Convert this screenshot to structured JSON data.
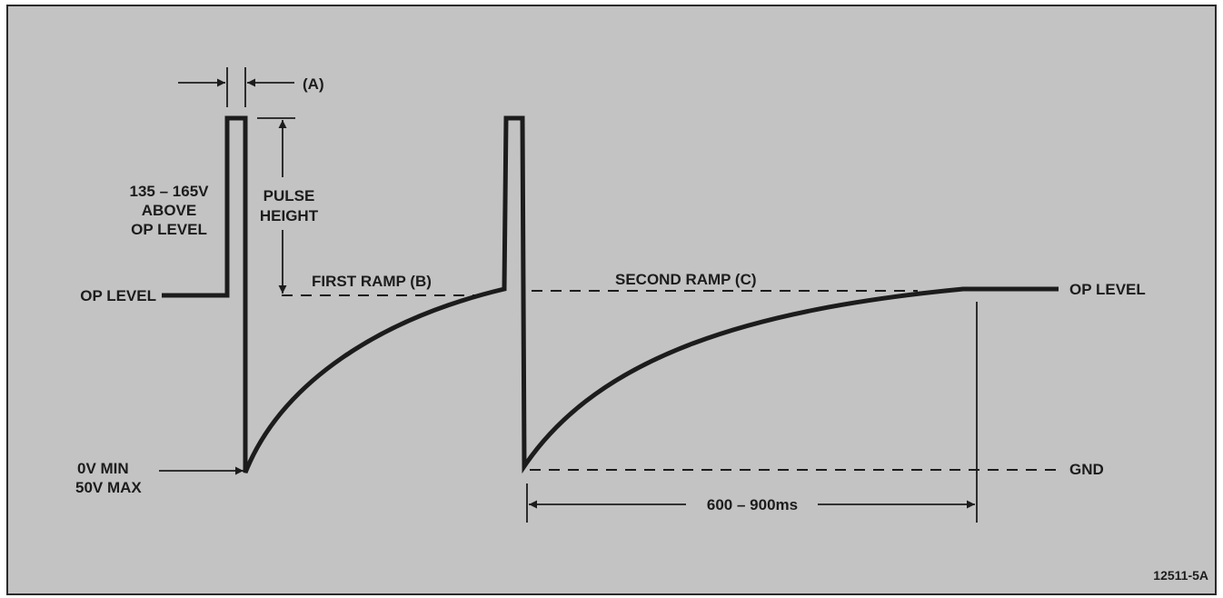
{
  "labels": {
    "a": "(A)",
    "pulse_height_line1": "PULSE",
    "pulse_height_line2": "HEIGHT",
    "above_line1": "135 – 165V",
    "above_line2": "ABOVE",
    "above_line3": "OP LEVEL",
    "op_level_left": "OP LEVEL",
    "first_ramp": "FIRST RAMP (B)",
    "second_ramp": "SECOND RAMP (C)",
    "op_level_right": "OP LEVEL",
    "min_line1": "0V MIN",
    "min_line2": "50V MAX",
    "gnd": "GND",
    "duration": "600 – 900ms",
    "figure_id": "12511-5A"
  },
  "colors": {
    "panel": "#c3c3c3",
    "border": "#2a2a2a",
    "ink": "#1c1c1c"
  }
}
